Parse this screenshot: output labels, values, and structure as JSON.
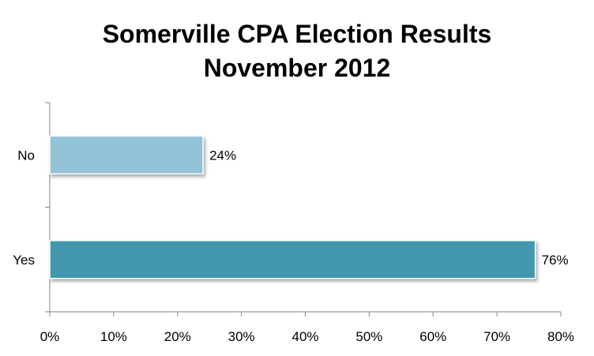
{
  "chart_data": {
    "type": "bar",
    "orientation": "horizontal",
    "title": "Somerville CPA Election Results",
    "subtitle": "November 2012",
    "categories": [
      "No",
      "Yes"
    ],
    "values": [
      24,
      76
    ],
    "data_labels": [
      "24%",
      "76%"
    ],
    "colors": [
      "#92c3d6",
      "#4397ae"
    ],
    "xlim": [
      0,
      80
    ],
    "xticks": [
      0,
      10,
      20,
      30,
      40,
      50,
      60,
      70,
      80
    ],
    "xtick_labels": [
      "0%",
      "10%",
      "20%",
      "30%",
      "40%",
      "50%",
      "60%",
      "70%",
      "80%"
    ],
    "grid": false,
    "legend": "none"
  }
}
